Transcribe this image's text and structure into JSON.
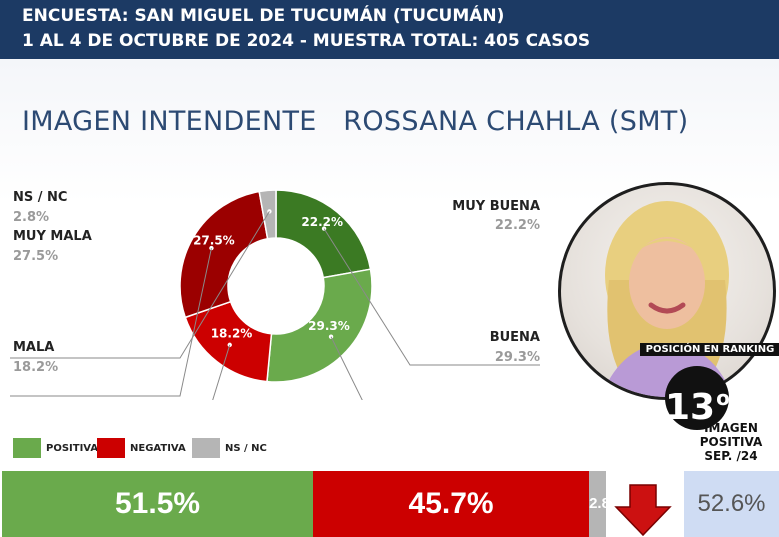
{
  "header": {
    "line1": "ENCUESTA: SAN MIGUEL DE TUCUMÁN (TUCUMÁN)",
    "line2": "1 AL 4 DE OCTUBRE DE 2024 - MUESTRA TOTAL: 405 CASOS"
  },
  "title": "IMAGEN INTENDENTE   ROSSANA CHAHLA (SMT)",
  "chart_data": [
    {
      "type": "pie",
      "donut": true,
      "slices": [
        {
          "label": "MUY BUENA",
          "value": 22.2,
          "text": "22.2%",
          "color": "#3b7a23"
        },
        {
          "label": "BUENA",
          "value": 29.3,
          "text": "29.3%",
          "color": "#6aaa4c"
        },
        {
          "label": "MALA",
          "value": 18.2,
          "text": "18.2%",
          "color": "#cc0000"
        },
        {
          "label": "MUY MALA",
          "value": 27.5,
          "text": "27.5%",
          "color": "#9b0000"
        },
        {
          "label": "NS / NC",
          "value": 2.8,
          "text": "2.8%",
          "color": "#b5b5b5"
        }
      ]
    },
    {
      "type": "bar",
      "stacked": true,
      "orientation": "horizontal",
      "categories": [
        "POSITIVA",
        "NEGATIVA",
        "NS / NC"
      ],
      "values": [
        51.5,
        45.7,
        2.8
      ],
      "labels": [
        "51.5%",
        "45.7%",
        "2.8%"
      ],
      "colors": [
        "#6aaa4c",
        "#cc0000",
        "#b5b5b5"
      ],
      "previous": {
        "label": "52.6%",
        "value": 52.6
      }
    }
  ],
  "legend": [
    {
      "label": "POSITIVA",
      "color": "#6aaa4c"
    },
    {
      "label": "NEGATIVA",
      "color": "#cc0000"
    },
    {
      "label": "NS / NC",
      "color": "#b5b5b5"
    }
  ],
  "ranking": {
    "caption": "POSICIÓN EN RANKING",
    "position": "13",
    "ordinal": "o",
    "line1": "IMAGEN",
    "line2": "POSITIVA",
    "line3": "SEP. /24"
  },
  "trend_icon": "down-arrow-icon"
}
